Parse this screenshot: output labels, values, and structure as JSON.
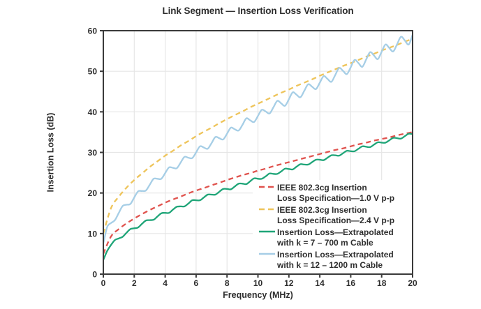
{
  "chart_data": {
    "type": "line",
    "title": "Link Segment — Insertion Loss Verification",
    "xlabel": "Frequency (MHz)",
    "ylabel": "Insertion Loss (dB)",
    "xlim": [
      0,
      20
    ],
    "ylim": [
      0,
      60
    ],
    "x_ticks": [
      0,
      2,
      4,
      6,
      8,
      10,
      12,
      14,
      16,
      18,
      20
    ],
    "y_ticks": [
      0,
      10,
      20,
      30,
      40,
      50,
      60
    ],
    "grid": true,
    "grid_color": "#e6e6e6",
    "axis_color": "#3a3a3a",
    "text_color": "#2d2d2d",
    "legend_position": "inside-lower-right",
    "series": [
      {
        "name": "IEEE 802.3cg Insertion Loss Specification—1.0 V p-p",
        "legend_lines": [
          "IEEE 802.3cg Insertion",
          "Loss Specification—1.0 V p-p"
        ],
        "color": "#e0534e",
        "style": "dashed",
        "points": [
          [
            0,
            5.0
          ],
          [
            0.5,
            9.3
          ],
          [
            1,
            11.1
          ],
          [
            1.5,
            12.5
          ],
          [
            2,
            13.7
          ],
          [
            2.5,
            14.8
          ],
          [
            3,
            15.8
          ],
          [
            3.5,
            16.7
          ],
          [
            4,
            17.6
          ],
          [
            4.5,
            18.4
          ],
          [
            5,
            19.1
          ],
          [
            5.5,
            19.9
          ],
          [
            6,
            20.6
          ],
          [
            6.5,
            21.2
          ],
          [
            7,
            21.9
          ],
          [
            7.5,
            22.5
          ],
          [
            8,
            23.2
          ],
          [
            8.5,
            23.8
          ],
          [
            9,
            24.4
          ],
          [
            9.5,
            24.9
          ],
          [
            10,
            25.5
          ],
          [
            10.5,
            26.0
          ],
          [
            11,
            26.6
          ],
          [
            11.5,
            27.1
          ],
          [
            12,
            27.6
          ],
          [
            12.5,
            28.1
          ],
          [
            13,
            28.6
          ],
          [
            13.5,
            29.1
          ],
          [
            14,
            29.6
          ],
          [
            14.5,
            30.1
          ],
          [
            15,
            30.6
          ],
          [
            15.5,
            31.0
          ],
          [
            16,
            31.5
          ],
          [
            16.5,
            32.0
          ],
          [
            17,
            32.4
          ],
          [
            17.5,
            32.9
          ],
          [
            18,
            33.3
          ],
          [
            18.5,
            33.7
          ],
          [
            19,
            34.2
          ],
          [
            19.5,
            34.6
          ],
          [
            20,
            35.0
          ]
        ]
      },
      {
        "name": "IEEE 802.3cg Insertion Loss Specification—2.4 V p-p",
        "legend_lines": [
          "IEEE 802.3cg Insertion",
          "Loss Specification—2.4 V p-p"
        ],
        "color": "#eec45a",
        "style": "dashed",
        "points": [
          [
            0,
            10.0
          ],
          [
            0.5,
            16.3
          ],
          [
            1,
            19.1
          ],
          [
            1.5,
            21.3
          ],
          [
            2,
            23.2
          ],
          [
            2.5,
            24.8
          ],
          [
            3,
            26.4
          ],
          [
            3.5,
            27.8
          ],
          [
            4,
            29.2
          ],
          [
            4.5,
            30.4
          ],
          [
            5,
            31.7
          ],
          [
            5.5,
            32.8
          ],
          [
            6,
            34.0
          ],
          [
            6.5,
            35.1
          ],
          [
            7,
            36.1
          ],
          [
            7.5,
            37.2
          ],
          [
            8,
            38.2
          ],
          [
            8.5,
            39.2
          ],
          [
            9,
            40.1
          ],
          [
            9.5,
            41.1
          ],
          [
            10,
            42.0
          ],
          [
            10.5,
            42.9
          ],
          [
            11,
            43.8
          ],
          [
            11.5,
            44.7
          ],
          [
            12,
            45.5
          ],
          [
            12.5,
            46.4
          ],
          [
            13,
            47.2
          ],
          [
            13.5,
            48.0
          ],
          [
            14,
            48.9
          ],
          [
            14.5,
            49.7
          ],
          [
            15,
            50.5
          ],
          [
            15.5,
            51.3
          ],
          [
            16,
            52.0
          ],
          [
            16.5,
            52.8
          ],
          [
            17,
            53.6
          ],
          [
            17.5,
            54.3
          ],
          [
            18,
            55.1
          ],
          [
            18.5,
            55.8
          ],
          [
            19,
            56.5
          ],
          [
            19.5,
            57.3
          ],
          [
            20,
            58.0
          ]
        ]
      },
      {
        "name": "Insertion Loss—Extrapolated with k = 7 – 700 m Cable",
        "legend_lines": [
          "Insertion Loss—Extrapolated",
          "with k = 7 – 700 m Cable"
        ],
        "color": "#1fa578",
        "style": "solid",
        "points": [
          [
            0,
            3.5
          ],
          [
            0.25,
            5.7
          ],
          [
            0.5,
            7.2
          ],
          [
            0.75,
            8.4
          ],
          [
            1,
            8.8
          ],
          [
            1.25,
            9.2
          ],
          [
            1.5,
            10.2
          ],
          [
            1.75,
            11.1
          ],
          [
            2,
            11.3
          ],
          [
            2.25,
            11.5
          ],
          [
            2.5,
            12.4
          ],
          [
            2.75,
            13.2
          ],
          [
            3,
            13.3
          ],
          [
            3.25,
            13.4
          ],
          [
            3.5,
            14.2
          ],
          [
            3.75,
            15.0
          ],
          [
            4,
            15.1
          ],
          [
            4.25,
            15.1
          ],
          [
            4.5,
            15.9
          ],
          [
            4.75,
            16.6
          ],
          [
            5,
            16.7
          ],
          [
            5.25,
            16.7
          ],
          [
            5.5,
            17.4
          ],
          [
            5.75,
            18.2
          ],
          [
            6,
            18.2
          ],
          [
            6.25,
            18.2
          ],
          [
            6.5,
            18.9
          ],
          [
            6.75,
            19.6
          ],
          [
            7,
            19.6
          ],
          [
            7.25,
            19.6
          ],
          [
            7.5,
            20.3
          ],
          [
            7.75,
            21.0
          ],
          [
            8,
            21.0
          ],
          [
            8.25,
            20.9
          ],
          [
            8.5,
            21.6
          ],
          [
            8.75,
            22.3
          ],
          [
            9,
            22.3
          ],
          [
            9.25,
            22.2
          ],
          [
            9.5,
            22.9
          ],
          [
            9.75,
            23.6
          ],
          [
            10,
            23.5
          ],
          [
            10.25,
            23.5
          ],
          [
            10.5,
            24.1
          ],
          [
            10.75,
            24.8
          ],
          [
            11,
            24.7
          ],
          [
            11.25,
            24.7
          ],
          [
            11.5,
            25.3
          ],
          [
            11.75,
            26.0
          ],
          [
            12,
            25.9
          ],
          [
            12.25,
            25.8
          ],
          [
            12.5,
            26.5
          ],
          [
            12.75,
            27.1
          ],
          [
            13,
            27.0
          ],
          [
            13.25,
            27.0
          ],
          [
            13.5,
            27.6
          ],
          [
            13.75,
            28.2
          ],
          [
            14,
            28.2
          ],
          [
            14.25,
            28.1
          ],
          [
            14.5,
            28.7
          ],
          [
            14.75,
            29.3
          ],
          [
            15,
            29.3
          ],
          [
            15.25,
            29.2
          ],
          [
            15.5,
            29.8
          ],
          [
            15.75,
            30.4
          ],
          [
            16,
            30.3
          ],
          [
            16.25,
            30.3
          ],
          [
            16.5,
            30.9
          ],
          [
            16.75,
            31.5
          ],
          [
            17,
            31.4
          ],
          [
            17.25,
            31.3
          ],
          [
            17.5,
            31.9
          ],
          [
            17.75,
            32.5
          ],
          [
            18,
            32.4
          ],
          [
            18.25,
            32.4
          ],
          [
            18.5,
            33.0
          ],
          [
            18.75,
            33.6
          ],
          [
            19,
            33.5
          ],
          [
            19.25,
            33.4
          ],
          [
            19.5,
            34.0
          ],
          [
            19.75,
            34.6
          ],
          [
            20,
            34.5
          ]
        ]
      },
      {
        "name": "Insertion Loss—Extrapolated with k = 12 – 1200 m Cable",
        "legend_lines": [
          "Insertion Loss—Extrapolated",
          "with k = 12 – 1200 m Cable"
        ],
        "color": "#a6cee6",
        "style": "solid",
        "points": [
          [
            0,
            7.5
          ],
          [
            0.25,
            11.6
          ],
          [
            0.5,
            12.6
          ],
          [
            0.75,
            13.3
          ],
          [
            1,
            15.1
          ],
          [
            1.25,
            16.8
          ],
          [
            1.5,
            17.1
          ],
          [
            1.75,
            17.3
          ],
          [
            2,
            18.9
          ],
          [
            2.25,
            20.4
          ],
          [
            2.5,
            20.5
          ],
          [
            2.75,
            20.6
          ],
          [
            3,
            22.0
          ],
          [
            3.25,
            23.5
          ],
          [
            3.5,
            23.5
          ],
          [
            3.75,
            23.5
          ],
          [
            4,
            24.9
          ],
          [
            4.25,
            26.3
          ],
          [
            4.5,
            26.2
          ],
          [
            4.75,
            26.1
          ],
          [
            5,
            27.5
          ],
          [
            5.25,
            28.9
          ],
          [
            5.5,
            28.7
          ],
          [
            5.75,
            28.6
          ],
          [
            6,
            30.0
          ],
          [
            6.25,
            31.5
          ],
          [
            6.5,
            31.2
          ],
          [
            6.75,
            30.9
          ],
          [
            7,
            32.3
          ],
          [
            7.25,
            33.8
          ],
          [
            7.5,
            33.5
          ],
          [
            7.75,
            33.2
          ],
          [
            8,
            34.6
          ],
          [
            8.25,
            36.1
          ],
          [
            8.5,
            35.7
          ],
          [
            8.75,
            35.4
          ],
          [
            9,
            36.8
          ],
          [
            9.25,
            38.4
          ],
          [
            9.5,
            37.9
          ],
          [
            9.75,
            37.5
          ],
          [
            10,
            39.0
          ],
          [
            10.25,
            40.5
          ],
          [
            10.5,
            40.1
          ],
          [
            10.75,
            39.6
          ],
          [
            11,
            41.1
          ],
          [
            11.25,
            42.7
          ],
          [
            11.5,
            42.1
          ],
          [
            11.75,
            41.5
          ],
          [
            12,
            43.1
          ],
          [
            12.25,
            44.8
          ],
          [
            12.5,
            44.2
          ],
          [
            12.75,
            43.6
          ],
          [
            13,
            45.2
          ],
          [
            13.25,
            46.8
          ],
          [
            13.5,
            46.2
          ],
          [
            13.75,
            45.6
          ],
          [
            14,
            47.2
          ],
          [
            14.25,
            48.8
          ],
          [
            14.5,
            48.1
          ],
          [
            14.75,
            47.4
          ],
          [
            15,
            49.1
          ],
          [
            15.25,
            50.8
          ],
          [
            15.5,
            50.1
          ],
          [
            15.75,
            49.3
          ],
          [
            16,
            51.0
          ],
          [
            16.25,
            52.8
          ],
          [
            16.5,
            52.0
          ],
          [
            16.75,
            51.1
          ],
          [
            17,
            52.9
          ],
          [
            17.25,
            54.7
          ],
          [
            17.5,
            53.9
          ],
          [
            17.75,
            53.0
          ],
          [
            18,
            54.8
          ],
          [
            18.25,
            56.6
          ],
          [
            18.5,
            55.7
          ],
          [
            18.75,
            54.9
          ],
          [
            19,
            56.7
          ],
          [
            19.25,
            58.5
          ],
          [
            19.5,
            57.6
          ],
          [
            19.75,
            56.6
          ],
          [
            20,
            59.0
          ]
        ]
      }
    ]
  }
}
